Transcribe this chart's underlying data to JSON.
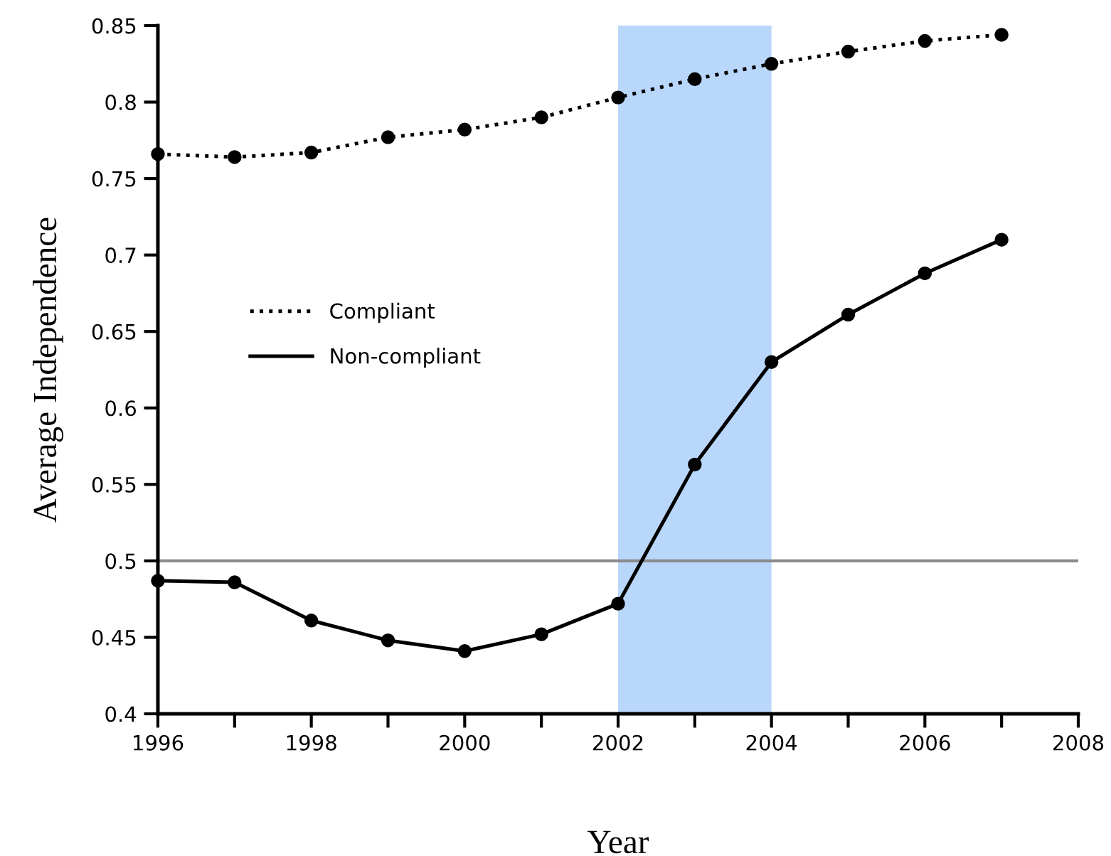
{
  "chart_data": {
    "type": "line",
    "xlabel": "Year",
    "ylabel": "Average Independence",
    "x": [
      1996,
      1997,
      1998,
      1999,
      2000,
      2001,
      2002,
      2003,
      2004,
      2005,
      2006,
      2007
    ],
    "series": [
      {
        "name": "Compliant",
        "color": "#000000",
        "line_style": "dotted",
        "values": [
          0.766,
          0.764,
          0.767,
          0.777,
          0.782,
          0.79,
          0.803,
          0.815,
          0.825,
          0.833,
          0.84,
          0.844
        ]
      },
      {
        "name": "Non-compliant",
        "color": "#000000",
        "line_style": "solid",
        "values": [
          0.487,
          0.486,
          0.461,
          0.448,
          0.441,
          0.452,
          0.472,
          0.563,
          0.63,
          0.661,
          0.688,
          0.71
        ]
      }
    ],
    "marker": "circle",
    "xlim": [
      1996,
      2008
    ],
    "xticks": [
      1996,
      {
        "value": 1997,
        "label": null
      },
      1998,
      {
        "value": 1999,
        "label": null
      },
      2000,
      {
        "value": 2001,
        "label": null
      },
      2002,
      {
        "value": 2003,
        "label": null
      },
      2004,
      {
        "value": 2005,
        "label": null
      },
      2006,
      {
        "value": 2007,
        "label": null
      },
      2008
    ],
    "ylim": [
      0.4,
      0.85
    ],
    "yticks": [
      0.4,
      0.45,
      0.5,
      0.55,
      0.6,
      0.65,
      0.7,
      0.75,
      0.8,
      0.85
    ],
    "ref_lines": [
      {
        "axis": "y",
        "value": 0.5,
        "color": "#8c8c8c"
      }
    ],
    "bands": [
      {
        "axis": "x",
        "from": 2002,
        "to": 2004,
        "color": "#b9d7fb"
      }
    ],
    "grid": false,
    "legend": "center left"
  }
}
